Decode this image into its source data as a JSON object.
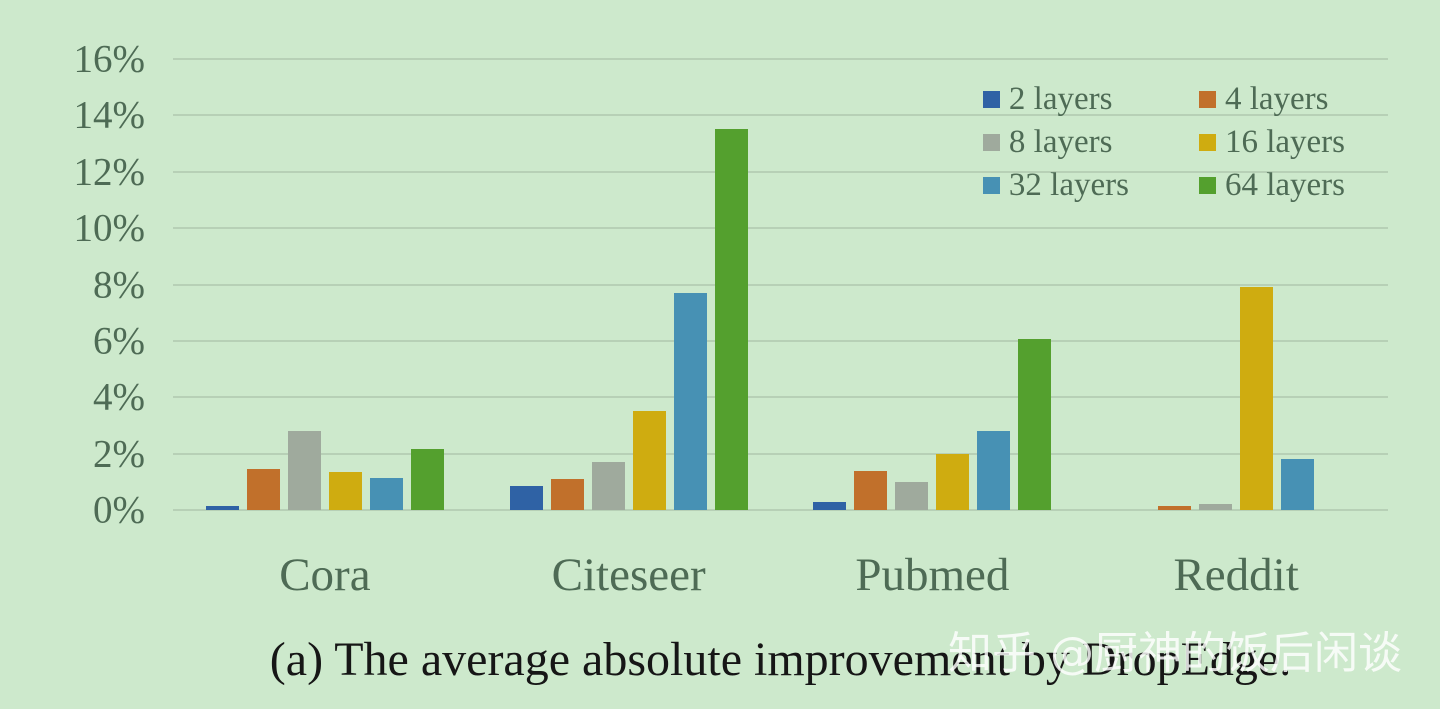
{
  "caption": "(a) The average absolute improvement by DropEdge.",
  "watermark": "知乎 @厨神的饭后闲谈",
  "colors": {
    "background": "#cde9cc",
    "gridline": "#b7d0b6",
    "axis_text": "#4e6b55",
    "caption_text": "#161616",
    "watermark_text": "rgba(255,255,255,0.82)"
  },
  "chart_data": {
    "type": "bar",
    "title": "",
    "xlabel": "",
    "ylabel": "",
    "categories": [
      "Cora",
      "Citeseer",
      "Pubmed",
      "Reddit"
    ],
    "series": [
      {
        "name": "2 layers",
        "color": "#2f62a5",
        "values": [
          0.15,
          0.85,
          0.3,
          0
        ]
      },
      {
        "name": "4 layers",
        "color": "#c1702b",
        "values": [
          1.45,
          1.1,
          1.4,
          0.15
        ]
      },
      {
        "name": "8 layers",
        "color": "#9faa9d",
        "values": [
          2.8,
          1.7,
          1.0,
          0.2
        ]
      },
      {
        "name": "16 layers",
        "color": "#cfac10",
        "values": [
          1.35,
          3.5,
          2.0,
          7.9
        ]
      },
      {
        "name": "32 layers",
        "color": "#4791b4",
        "values": [
          1.15,
          7.7,
          2.8,
          1.8
        ]
      },
      {
        "name": "64 layers",
        "color": "#54a02e",
        "values": [
          2.15,
          13.5,
          6.05,
          0
        ]
      }
    ],
    "ylim": [
      0,
      16
    ],
    "ytick_step": 2,
    "yticks": [
      "0%",
      "2%",
      "4%",
      "6%",
      "8%",
      "10%",
      "12%",
      "14%",
      "16%"
    ],
    "grid": true,
    "legend_position": "top-right"
  }
}
